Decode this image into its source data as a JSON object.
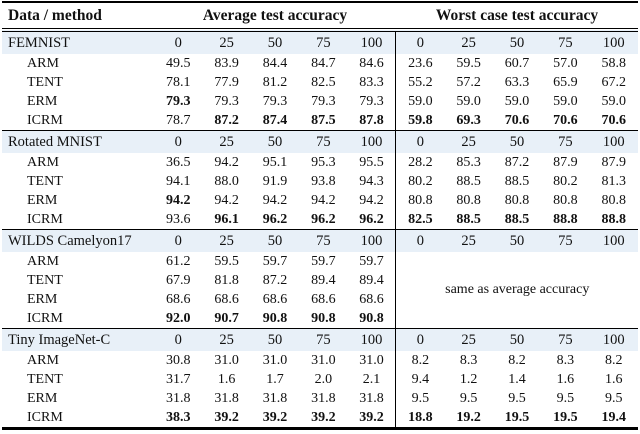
{
  "table": {
    "header": {
      "col1": "Data / method",
      "group1": "Average test accuracy",
      "group2": "Worst case test accuracy"
    },
    "env_labels": [
      "0",
      "25",
      "50",
      "75",
      "100"
    ],
    "notes": {
      "same_as_avg": "same as average accuracy"
    },
    "sections": [
      {
        "name": "FEMNIST",
        "rows": [
          {
            "method": "ARM",
            "avg": [
              "49.5",
              "83.9",
              "84.4",
              "84.7",
              "84.6"
            ],
            "worst": [
              "23.6",
              "59.5",
              "60.7",
              "57.0",
              "58.8"
            ]
          },
          {
            "method": "TENT",
            "avg": [
              "78.1",
              "77.9",
              "81.2",
              "82.5",
              "83.3"
            ],
            "worst": [
              "55.2",
              "57.2",
              "63.3",
              "65.9",
              "67.2"
            ]
          },
          {
            "method": "ERM",
            "avg": [
              "79.3",
              "79.3",
              "79.3",
              "79.3",
              "79.3"
            ],
            "avg_bold": [
              true,
              false,
              false,
              false,
              false
            ],
            "worst": [
              "59.0",
              "59.0",
              "59.0",
              "59.0",
              "59.0"
            ]
          },
          {
            "method": "ICRM",
            "avg": [
              "78.7",
              "87.2",
              "87.4",
              "87.5",
              "87.8"
            ],
            "avg_bold": [
              false,
              true,
              true,
              true,
              true
            ],
            "worst": [
              "59.8",
              "69.3",
              "70.6",
              "70.6",
              "70.6"
            ],
            "worst_bold": [
              true,
              true,
              true,
              true,
              true
            ]
          }
        ]
      },
      {
        "name": "Rotated MNIST",
        "rows": [
          {
            "method": "ARM",
            "avg": [
              "36.5",
              "94.2",
              "95.1",
              "95.3",
              "95.5"
            ],
            "worst": [
              "28.2",
              "85.3",
              "87.2",
              "87.9",
              "87.9"
            ]
          },
          {
            "method": "TENT",
            "avg": [
              "94.1",
              "88.0",
              "91.9",
              "93.8",
              "94.3"
            ],
            "worst": [
              "80.2",
              "88.5",
              "88.5",
              "80.2",
              "81.3"
            ]
          },
          {
            "method": "ERM",
            "avg": [
              "94.2",
              "94.2",
              "94.2",
              "94.2",
              "94.2"
            ],
            "avg_bold": [
              true,
              false,
              false,
              false,
              false
            ],
            "worst": [
              "80.8",
              "80.8",
              "80.8",
              "80.8",
              "80.8"
            ]
          },
          {
            "method": "ICRM",
            "avg": [
              "93.6",
              "96.1",
              "96.2",
              "96.2",
              "96.2"
            ],
            "avg_bold": [
              false,
              true,
              true,
              true,
              true
            ],
            "worst": [
              "82.5",
              "88.5",
              "88.5",
              "88.8",
              "88.8"
            ],
            "worst_bold": [
              true,
              true,
              true,
              true,
              true
            ]
          }
        ]
      },
      {
        "name": "WILDS Camelyon17",
        "worst_note": "same as average accuracy",
        "rows": [
          {
            "method": "ARM",
            "avg": [
              "61.2",
              "59.5",
              "59.7",
              "59.7",
              "59.7"
            ]
          },
          {
            "method": "TENT",
            "avg": [
              "67.9",
              "81.8",
              "87.2",
              "89.4",
              "89.4"
            ]
          },
          {
            "method": "ERM",
            "avg": [
              "68.6",
              "68.6",
              "68.6",
              "68.6",
              "68.6"
            ]
          },
          {
            "method": "ICRM",
            "avg": [
              "92.0",
              "90.7",
              "90.8",
              "90.8",
              "90.8"
            ],
            "avg_bold": [
              true,
              true,
              true,
              true,
              true
            ]
          }
        ]
      },
      {
        "name": "Tiny ImageNet-C",
        "rows": [
          {
            "method": "ARM",
            "avg": [
              "30.8",
              "31.0",
              "31.0",
              "31.0",
              "31.0"
            ],
            "worst": [
              "8.2",
              "8.3",
              "8.2",
              "8.3",
              "8.2"
            ]
          },
          {
            "method": "TENT",
            "avg": [
              "31.7",
              "1.6",
              "1.7",
              "2.0",
              "2.1"
            ],
            "worst": [
              "9.4",
              "1.2",
              "1.4",
              "1.6",
              "1.6"
            ]
          },
          {
            "method": "ERM",
            "avg": [
              "31.8",
              "31.8",
              "31.8",
              "31.8",
              "31.8"
            ],
            "worst": [
              "9.5",
              "9.5",
              "9.5",
              "9.5",
              "9.5"
            ]
          },
          {
            "method": "ICRM",
            "avg": [
              "38.3",
              "39.2",
              "39.2",
              "39.2",
              "39.2"
            ],
            "avg_bold": [
              true,
              true,
              true,
              true,
              true
            ],
            "worst": [
              "18.8",
              "19.2",
              "19.5",
              "19.5",
              "19.4"
            ],
            "worst_bold": [
              true,
              true,
              true,
              true,
              true
            ]
          }
        ]
      }
    ]
  },
  "colors": {
    "section_row_bg": "#e8f0f8",
    "rule": "#000000",
    "text": "#111111"
  }
}
